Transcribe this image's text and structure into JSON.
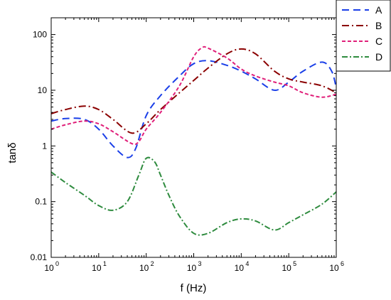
{
  "chart_data": {
    "type": "line",
    "xlabel": "f (Hz)",
    "ylabel": "tanδ",
    "x_scale": "log",
    "y_scale": "log",
    "xlim": [
      1,
      1000000
    ],
    "ylim": [
      0.01,
      200
    ],
    "x_ticks": [
      {
        "value": 1,
        "base": "10",
        "exp": "0"
      },
      {
        "value": 10,
        "base": "10",
        "exp": "1"
      },
      {
        "value": 100,
        "base": "10",
        "exp": "2"
      },
      {
        "value": 1000,
        "base": "10",
        "exp": "3"
      },
      {
        "value": 10000,
        "base": "10",
        "exp": "4"
      },
      {
        "value": 100000,
        "base": "10",
        "exp": "5"
      },
      {
        "value": 1000000,
        "base": "10",
        "exp": "6"
      }
    ],
    "y_ticks": [
      {
        "value": 0.01,
        "label": "0.01"
      },
      {
        "value": 0.1,
        "label": "0.1"
      },
      {
        "value": 1,
        "label": "1"
      },
      {
        "value": 10,
        "label": "10"
      },
      {
        "value": 100,
        "label": "100"
      }
    ],
    "grid": false,
    "legend_position": "top-right",
    "series": [
      {
        "name": "A",
        "color": "#1a3fe8",
        "dash": "10,6",
        "x": [
          1,
          2,
          5,
          10,
          20,
          40,
          60,
          100,
          200,
          500,
          1000,
          2000,
          5000,
          10000,
          20000,
          50000,
          100000,
          200000,
          500000,
          800000,
          1000000
        ],
        "y": [
          2.8,
          3.1,
          3.0,
          2.0,
          1.0,
          0.62,
          0.9,
          3.5,
          8.0,
          18,
          30,
          34,
          28,
          22,
          16,
          10,
          14,
          22,
          32,
          22,
          11
        ]
      },
      {
        "name": "B",
        "color": "#8b0000",
        "dash": "10,4,2,4",
        "x": [
          1,
          2,
          5,
          10,
          20,
          50,
          100,
          200,
          500,
          1000,
          2000,
          5000,
          10000,
          20000,
          50000,
          100000,
          200000,
          500000,
          1000000
        ],
        "y": [
          3.8,
          4.5,
          5.2,
          4.5,
          3.0,
          1.7,
          2.5,
          4.5,
          9.0,
          15,
          25,
          45,
          55,
          45,
          22,
          16,
          14,
          12,
          9
        ]
      },
      {
        "name": "C",
        "color": "#e0207a",
        "dash": "5,3",
        "x": [
          1,
          2,
          5,
          10,
          20,
          50,
          70,
          100,
          200,
          500,
          1000,
          1500,
          2000,
          5000,
          10000,
          20000,
          50000,
          100000,
          200000,
          500000,
          1000000
        ],
        "y": [
          2.0,
          2.4,
          2.8,
          2.5,
          1.8,
          1.1,
          1.2,
          2.0,
          4.0,
          12,
          40,
          58,
          57,
          38,
          24,
          18,
          14,
          12,
          9,
          7.5,
          8.5
        ]
      },
      {
        "name": "D",
        "color": "#2e8b3e",
        "dash": "8,3,2,3",
        "x": [
          1,
          2,
          5,
          10,
          20,
          40,
          70,
          100,
          150,
          200,
          300,
          500,
          1000,
          2000,
          5000,
          10000,
          20000,
          50000,
          100000,
          200000,
          500000,
          1000000
        ],
        "y": [
          0.34,
          0.22,
          0.13,
          0.085,
          0.07,
          0.1,
          0.3,
          0.6,
          0.52,
          0.3,
          0.13,
          0.055,
          0.027,
          0.027,
          0.042,
          0.049,
          0.045,
          0.031,
          0.042,
          0.058,
          0.09,
          0.15
        ]
      }
    ]
  }
}
